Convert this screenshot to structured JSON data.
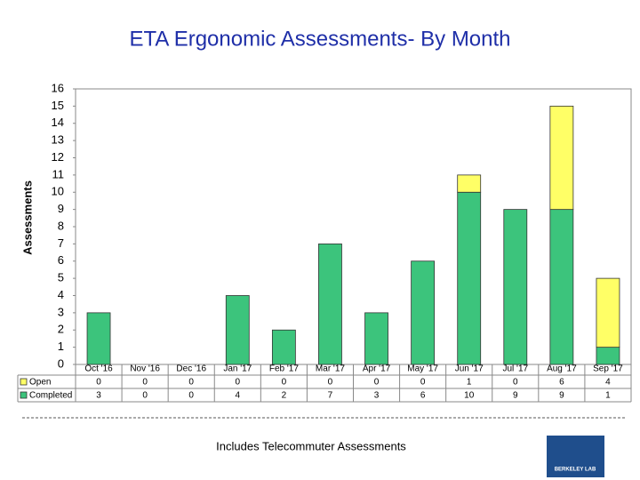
{
  "chart_data": {
    "type": "stacked_bar",
    "title": "ETA Ergonomic Assessments- By Month",
    "y_label": "Assessments",
    "categories": [
      "Oct '16",
      "Nov '16",
      "Dec '16",
      "Jan '17",
      "Feb '17",
      "Mar '17",
      "Apr '17",
      "May '17",
      "Jun '17",
      "Jul '17",
      "Aug '17",
      "Sep '17"
    ],
    "series": [
      {
        "name": "Open",
        "color": "#ffff66",
        "values": [
          0,
          0,
          0,
          0,
          0,
          0,
          0,
          0,
          1,
          0,
          6,
          4
        ]
      },
      {
        "name": "Completed",
        "color": "#3cc47c",
        "values": [
          3,
          0,
          0,
          4,
          2,
          7,
          3,
          6,
          10,
          9,
          9,
          1
        ]
      }
    ],
    "ylim": [
      0,
      16
    ],
    "yticks": [
      0,
      1,
      2,
      3,
      4,
      5,
      6,
      7,
      8,
      9,
      10,
      11,
      12,
      13,
      14,
      15,
      16
    ],
    "grid": false,
    "note": "Includes Telecommuter Assessments",
    "logo": "BERKELEY LAB"
  }
}
